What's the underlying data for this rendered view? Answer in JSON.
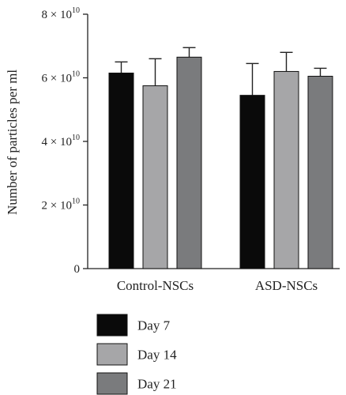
{
  "chart_data": {
    "type": "bar",
    "ylabel": "Number of particles per ml",
    "xlabel": "",
    "ylim": [
      0,
      80000000000.0
    ],
    "yticks": [
      0,
      20000000000.0,
      40000000000.0,
      60000000000.0,
      80000000000.0
    ],
    "ytick_labels": [
      {
        "text": "0",
        "base": "",
        "exp": ""
      },
      {
        "text": "",
        "base": "2 × 10",
        "exp": "10"
      },
      {
        "text": "",
        "base": "4 × 10",
        "exp": "10"
      },
      {
        "text": "",
        "base": "6 × 10",
        "exp": "10"
      },
      {
        "text": "",
        "base": "8 × 10",
        "exp": "10"
      }
    ],
    "categories": [
      "Control-NSCs",
      "ASD-NSCs"
    ],
    "series": [
      {
        "name": "Day 7",
        "color": "#0a0a0a",
        "values": [
          61500000000.0,
          54500000000.0
        ],
        "errors": [
          3500000000.0,
          10000000000.0
        ]
      },
      {
        "name": "Day 14",
        "color": "#a6a6a8",
        "values": [
          57500000000.0,
          62000000000.0
        ],
        "errors": [
          8500000000.0,
          6000000000.0
        ]
      },
      {
        "name": "Day 21",
        "color": "#7a7b7d",
        "values": [
          66500000000.0,
          60500000000.0
        ],
        "errors": [
          3000000000.0,
          2500000000.0
        ]
      }
    ],
    "legend_position": "bottom-left",
    "grid": false
  }
}
